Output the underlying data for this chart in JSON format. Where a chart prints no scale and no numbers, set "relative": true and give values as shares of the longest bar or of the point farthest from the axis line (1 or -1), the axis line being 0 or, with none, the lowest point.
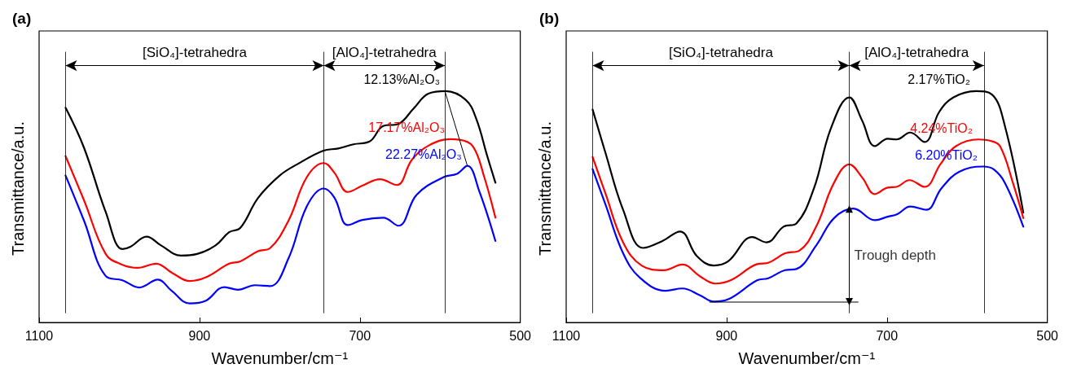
{
  "chart_data": [
    {
      "type": "line",
      "title": "(a)",
      "xlabel": "Wavenumber/cm⁻¹",
      "ylabel": "Transmittance/a.u.",
      "relative": true,
      "tick_labels": "x",
      "xlim": [
        1100,
        500
      ],
      "xticks": [
        1100,
        900,
        700,
        500
      ],
      "series": [
        {
          "name": "12.13%Al₂O₃",
          "color": "#000000",
          "x": [
            1067,
            1044,
            1017,
            996,
            986,
            966,
            948,
            923,
            903,
            880,
            863,
            849,
            827,
            800,
            777,
            746,
            727,
            708,
            688,
            671,
            652,
            633,
            614,
            593,
            568,
            555,
            541,
            531
          ],
          "values": [
            0.928,
            0.755,
            0.478,
            0.317,
            0.327,
            0.371,
            0.333,
            0.289,
            0.296,
            0.333,
            0.39,
            0.409,
            0.538,
            0.635,
            0.686,
            0.742,
            0.752,
            0.77,
            0.782,
            0.849,
            0.858,
            0.925,
            0.99,
            1.0,
            0.962,
            0.881,
            0.717,
            0.604
          ]
        },
        {
          "name": "17.17%Al₂O₃",
          "color": "#ff0000",
          "x": [
            1067,
            1044,
            1017,
            998,
            977,
            954,
            934,
            912,
            892,
            863,
            849,
            827,
            812,
            789,
            766,
            745,
            732,
            715,
            697,
            675,
            654,
            635,
            614,
            587,
            576,
            559,
            545,
            531
          ],
          "values": [
            0.719,
            0.528,
            0.296,
            0.252,
            0.236,
            0.254,
            0.214,
            0.179,
            0.195,
            0.254,
            0.264,
            0.308,
            0.321,
            0.44,
            0.629,
            0.689,
            0.648,
            0.564,
            0.591,
            0.619,
            0.594,
            0.704,
            0.765,
            0.792,
            0.79,
            0.761,
            0.629,
            0.453
          ]
        },
        {
          "name": "22.27%Al₂O₃",
          "color": "#0000ff",
          "x": [
            1067,
            1044,
            1017,
            996,
            975,
            952,
            935,
            912,
            892,
            869,
            852,
            831,
            812,
            789,
            766,
            745,
            732,
            715,
            697,
            671,
            652,
            629,
            595,
            579,
            566,
            551,
            531
          ],
          "values": [
            0.635,
            0.44,
            0.201,
            0.182,
            0.151,
            0.185,
            0.138,
            0.082,
            0.094,
            0.153,
            0.141,
            0.161,
            0.157,
            0.277,
            0.503,
            0.579,
            0.541,
            0.421,
            0.443,
            0.453,
            0.418,
            0.553,
            0.629,
            0.642,
            0.677,
            0.566,
            0.352
          ]
        },
        {
          "color": "#000000",
          "x": [
            594,
            566
          ],
          "values": [
            1.0,
            0.677
          ]
        }
      ],
      "annotations": [
        "[SiO₄]-tetrahedra",
        "[AlO₄]-tetrahedra"
      ],
      "ref_lines": [
        {
          "axis": "x",
          "value": 1067
        },
        {
          "axis": "x",
          "value": 745
        },
        {
          "axis": "x",
          "value": 594
        }
      ]
    },
    {
      "type": "line",
      "title": "(b)",
      "xlabel": "Wavenumber/cm⁻¹",
      "ylabel": "Transmittance/a.u.",
      "relative": true,
      "tick_labels": "x",
      "xlim": [
        1100,
        500
      ],
      "xticks": [
        1100,
        900,
        700,
        500
      ],
      "series": [
        {
          "name": "2.17%TiO₂",
          "color": "#000000",
          "x": [
            1067,
            1051,
            1029,
            1004,
            980,
            958,
            937,
            916,
            898,
            868,
            850,
            829,
            813,
            791,
            770,
            747,
            731,
            715,
            699,
            688,
            671,
            653,
            635,
            617,
            589,
            569,
            553,
            530
          ],
          "values": [
            0.92,
            0.733,
            0.487,
            0.322,
            0.352,
            0.393,
            0.287,
            0.246,
            0.264,
            0.369,
            0.346,
            0.414,
            0.428,
            0.58,
            0.838,
            0.973,
            0.873,
            0.762,
            0.794,
            0.791,
            0.821,
            0.78,
            0.909,
            0.973,
            1.0,
            0.985,
            0.85,
            0.475
          ]
        },
        {
          "name": "4.24%TiO₂",
          "color": "#ff0000",
          "x": [
            1067,
            1051,
            1029,
            1006,
            978,
            955,
            933,
            914,
            894,
            862,
            848,
            827,
            809,
            788,
            766,
            747,
            731,
            715,
            699,
            688,
            672,
            653,
            633,
            614,
            586,
            571,
            559,
            543,
            530
          ],
          "values": [
            0.715,
            0.557,
            0.346,
            0.246,
            0.226,
            0.25,
            0.199,
            0.168,
            0.184,
            0.252,
            0.258,
            0.299,
            0.311,
            0.416,
            0.604,
            0.683,
            0.627,
            0.555,
            0.583,
            0.586,
            0.615,
            0.586,
            0.686,
            0.762,
            0.791,
            0.785,
            0.762,
            0.604,
            0.451
          ]
        },
        {
          "name": "6.20%TiO₂",
          "color": "#0000ff",
          "x": [
            1067,
            1051,
            1029,
            1008,
            976,
            955,
            933,
            916,
            898,
            862,
            848,
            827,
            813,
            788,
            766,
            742,
            715,
            699,
            687,
            671,
            651,
            632,
            610,
            580,
            567,
            553,
            530
          ],
          "values": [
            0.662,
            0.51,
            0.299,
            0.193,
            0.137,
            0.147,
            0.117,
            0.09,
            0.1,
            0.182,
            0.191,
            0.226,
            0.231,
            0.334,
            0.451,
            0.492,
            0.442,
            0.457,
            0.468,
            0.501,
            0.487,
            0.58,
            0.651,
            0.674,
            0.662,
            0.604,
            0.414
          ]
        },
        {
          "color": "#000000",
          "x": [
            921,
            736
          ],
          "values": [
            0.088,
            0.088
          ]
        },
        {
          "color": "#000000",
          "x": [
            747,
            747
          ],
          "values": [
            0.49,
            0.09
          ],
          "marker": "triangle"
        }
      ],
      "annotations": [
        "[SiO₄]-tetrahedra",
        "[AlO₄]-tetrahedra",
        {
          "text": "Trough depth",
          "x": 747,
          "y": 0.29
        }
      ],
      "ref_lines": [
        {
          "axis": "x",
          "value": 1067
        },
        {
          "axis": "x",
          "value": 747
        },
        {
          "axis": "x",
          "value": 579
        }
      ]
    }
  ]
}
